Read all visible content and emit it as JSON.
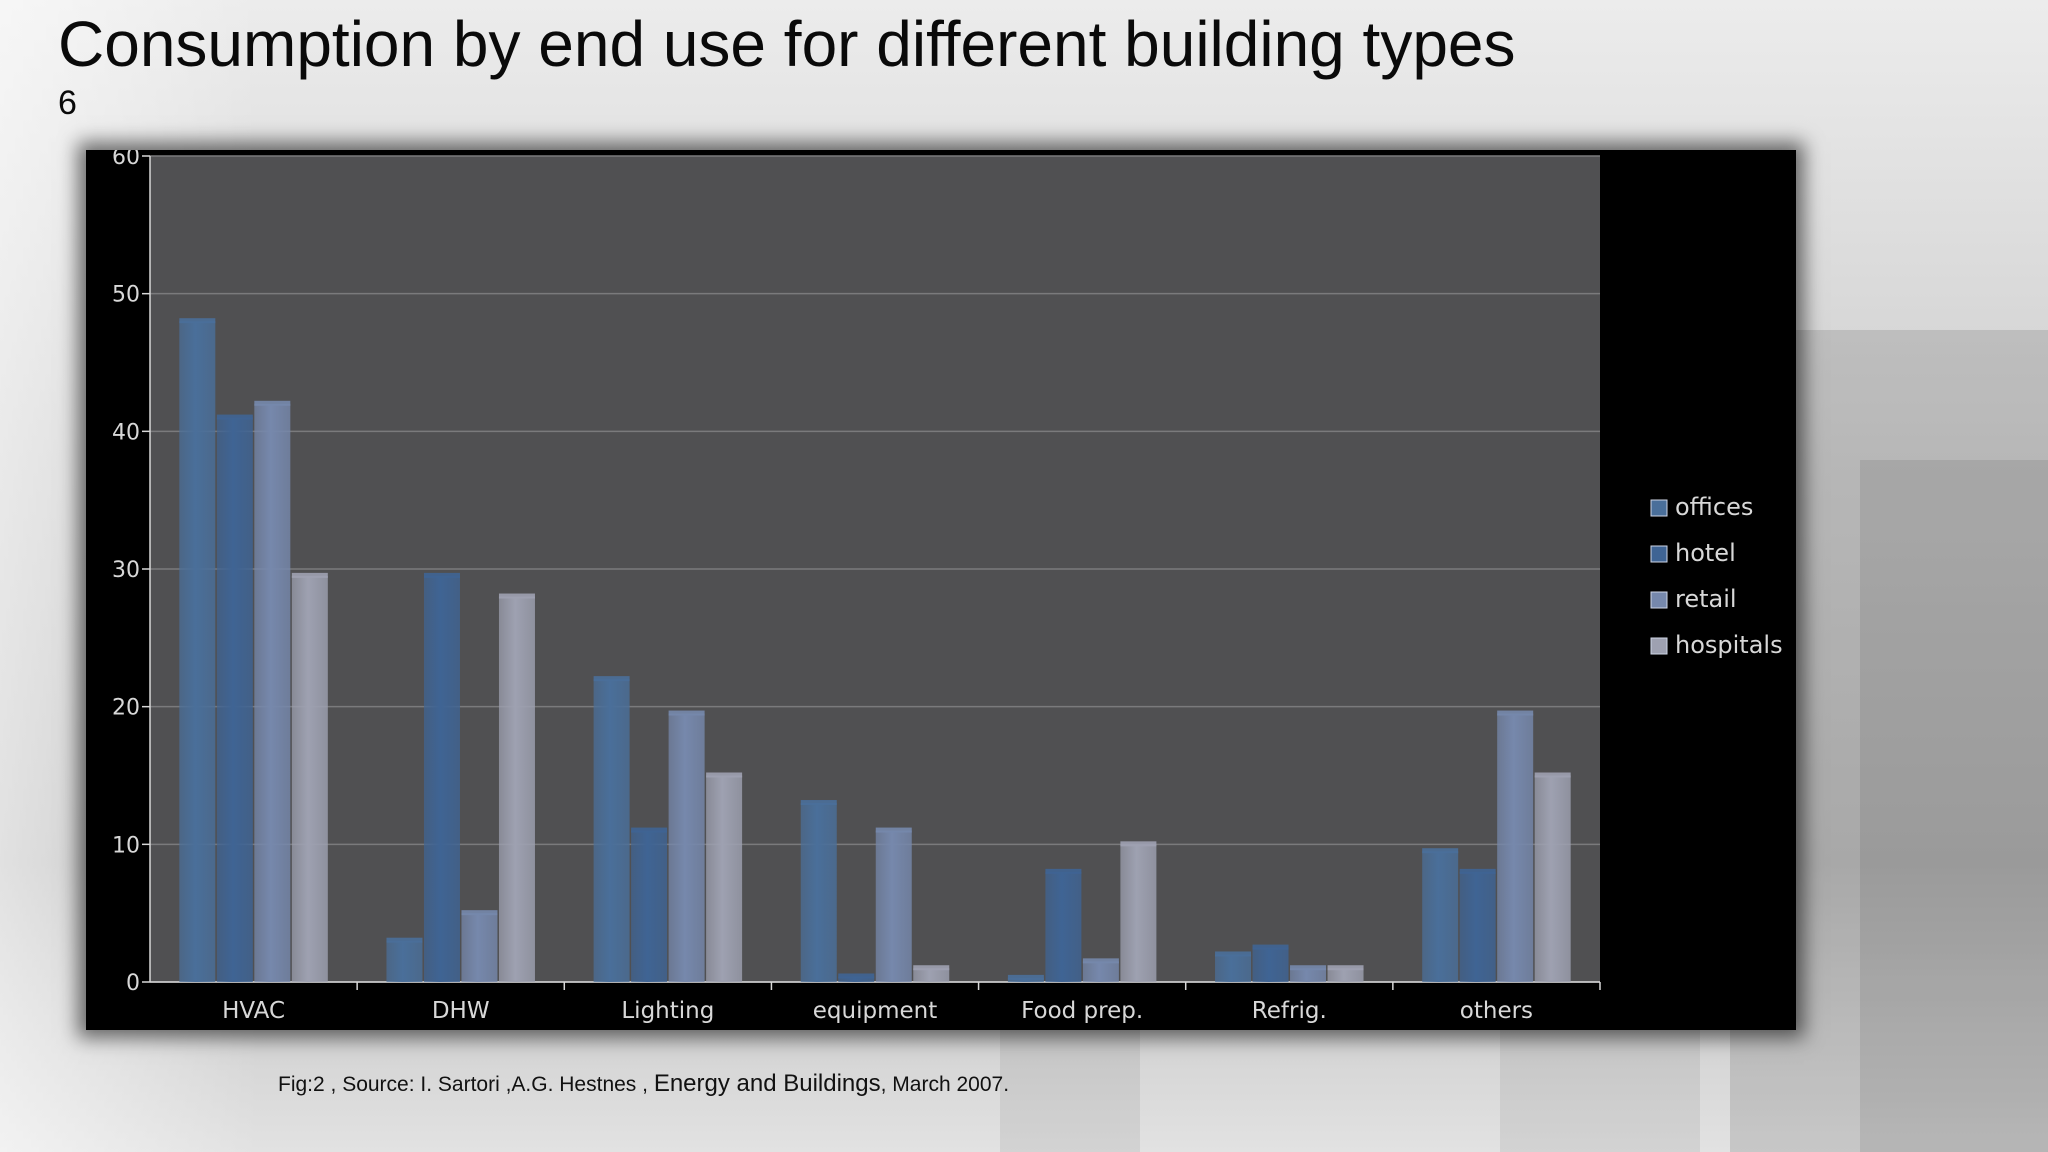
{
  "slide": {
    "title": "Consumption by end use for different building types",
    "number": "6"
  },
  "caption": {
    "prefix": "Fig:2 , Source: I. Sartori ,A.G. Hestnes , ",
    "journal": "Energy and Buildings",
    "suffix": ", March 2007."
  },
  "colors": {
    "plot_background": "#505052",
    "frame": "#000000",
    "gridline": "#7a7a7c",
    "axis_text": "#d8d8d8",
    "series": [
      "#4a6f9a",
      "#3f6494",
      "#7688ac",
      "#9ea1b1"
    ]
  },
  "chart_data": {
    "type": "bar",
    "title": "",
    "xlabel": "",
    "ylabel": "",
    "categories": [
      "HVAC",
      "DHW",
      "Lighting",
      "equipment",
      "Food prep.",
      "Refrig.",
      "others"
    ],
    "ylim": [
      0,
      60
    ],
    "yticks": [
      "0",
      "10",
      "20",
      "30",
      "40",
      "50",
      "60"
    ],
    "grid": true,
    "legend_position": "right",
    "series": [
      {
        "name": "offices",
        "values": [
          48,
          3,
          22,
          13,
          0.3,
          2,
          9.5
        ]
      },
      {
        "name": "hotel",
        "values": [
          41,
          29.5,
          11,
          0.4,
          8,
          2.5,
          8
        ]
      },
      {
        "name": "retail",
        "values": [
          42,
          5,
          19.5,
          11,
          1.5,
          1,
          19.5
        ]
      },
      {
        "name": "hospitals",
        "values": [
          29.5,
          28,
          15,
          1,
          10,
          1,
          15
        ]
      }
    ]
  }
}
